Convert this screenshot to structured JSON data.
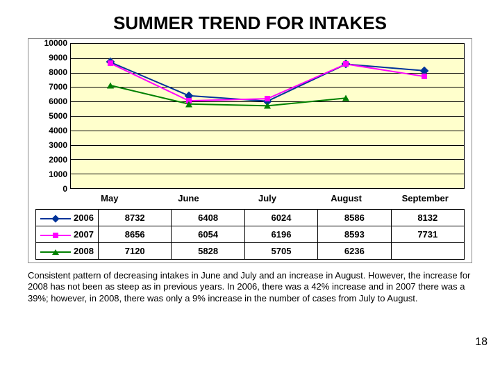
{
  "title": {
    "text": "SUMMER TREND FOR INTAKES",
    "fontsize": 26
  },
  "chart": {
    "type": "line",
    "categories": [
      "May",
      "June",
      "July",
      "August",
      "September"
    ],
    "series": [
      {
        "name": "2006",
        "color": "#003399",
        "marker": "diamond",
        "values": [
          8732,
          6408,
          6024,
          8586,
          8132
        ]
      },
      {
        "name": "2007",
        "color": "#ff00ff",
        "marker": "square",
        "values": [
          8656,
          6054,
          6196,
          8593,
          7731
        ]
      },
      {
        "name": "2008",
        "color": "#008000",
        "marker": "triangle",
        "values": [
          7120,
          5828,
          5705,
          6236,
          null
        ]
      }
    ],
    "ylim": [
      0,
      10000
    ],
    "ytick_step": 1000,
    "background_color": "#ffffcc",
    "grid_color": "#000000",
    "axis_color": "#000000",
    "tick_fontsize": 12,
    "xlabel_fontsize": 13,
    "line_width": 2,
    "marker_size": 9
  },
  "caption": {
    "text": "Consistent pattern of decreasing intakes in June and July and an increase in August.  However, the increase for 2008 has not been as steep as in previous years.  In 2006, there was a 42% increase and in 2007 there was a 39%; however, in 2008, there was only a 9% increase in the number of cases from July to August.",
    "fontsize": 13
  },
  "page_number": {
    "text": "18",
    "fontsize": 16
  }
}
